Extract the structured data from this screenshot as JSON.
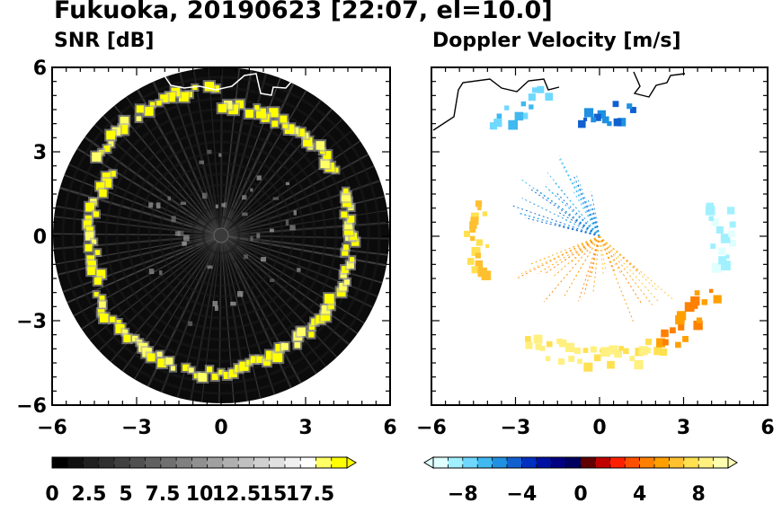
{
  "figure": {
    "title": "Fukuoka, 20190623 [22:07, el=10.0]"
  },
  "chart_data": [
    {
      "type": "heatmap",
      "title": "SNR [dB]",
      "xlim": [
        -6,
        6
      ],
      "ylim": [
        -6,
        6
      ],
      "x_ticks": [
        "−6",
        "−3",
        "0",
        "3",
        "6"
      ],
      "y_ticks": [
        "6",
        "3",
        "0",
        "−3",
        "−6"
      ],
      "colorbar": {
        "labels": [
          "0",
          "2.5",
          "5",
          "7.5",
          "10",
          "12.5",
          "15",
          "17.5"
        ],
        "min": 0,
        "max": 20,
        "extend": "max",
        "colors": [
          "#000000",
          "#101010",
          "#202020",
          "#303030",
          "#404040",
          "#505050",
          "#606060",
          "#707070",
          "#808080",
          "#909090",
          "#a0a0a0",
          "#b0b0b0",
          "#c0c0c0",
          "#d0d0d0",
          "#e0e0e0",
          "#f0f0f0",
          "#ffffff",
          "#ffff66",
          "#ffff00"
        ]
      },
      "echo_ring_radius": 4.6
    },
    {
      "type": "heatmap",
      "title": "Doppler Velocity [m/s]",
      "xlim": [
        -6,
        6
      ],
      "ylim": [
        -6,
        6
      ],
      "x_ticks": [
        "−6",
        "−3",
        "0",
        "3",
        "6"
      ],
      "colorbar": {
        "labels": [
          "−8",
          "−4",
          "0",
          "4",
          "8"
        ],
        "min": -10,
        "max": 10,
        "extend": "both",
        "colors": [
          "#e0ffff",
          "#a0f0ff",
          "#70d8ff",
          "#40b8f0",
          "#2090e0",
          "#1060d0",
          "#0030c0",
          "#0010a0",
          "#000080",
          "#000060",
          "#600000",
          "#c00000",
          "#ff2000",
          "#ff5000",
          "#ff8000",
          "#ffa000",
          "#ffc030",
          "#ffe050",
          "#fff080",
          "#ffffb0"
        ]
      },
      "echoes": [
        {
          "region": "north-northwest",
          "velocity": -7
        },
        {
          "region": "north",
          "velocity": -5
        },
        {
          "region": "east",
          "velocity": -9
        },
        {
          "region": "west",
          "velocity": 7
        },
        {
          "region": "south",
          "velocity": 8
        },
        {
          "region": "southeast",
          "velocity": 5
        }
      ]
    }
  ]
}
